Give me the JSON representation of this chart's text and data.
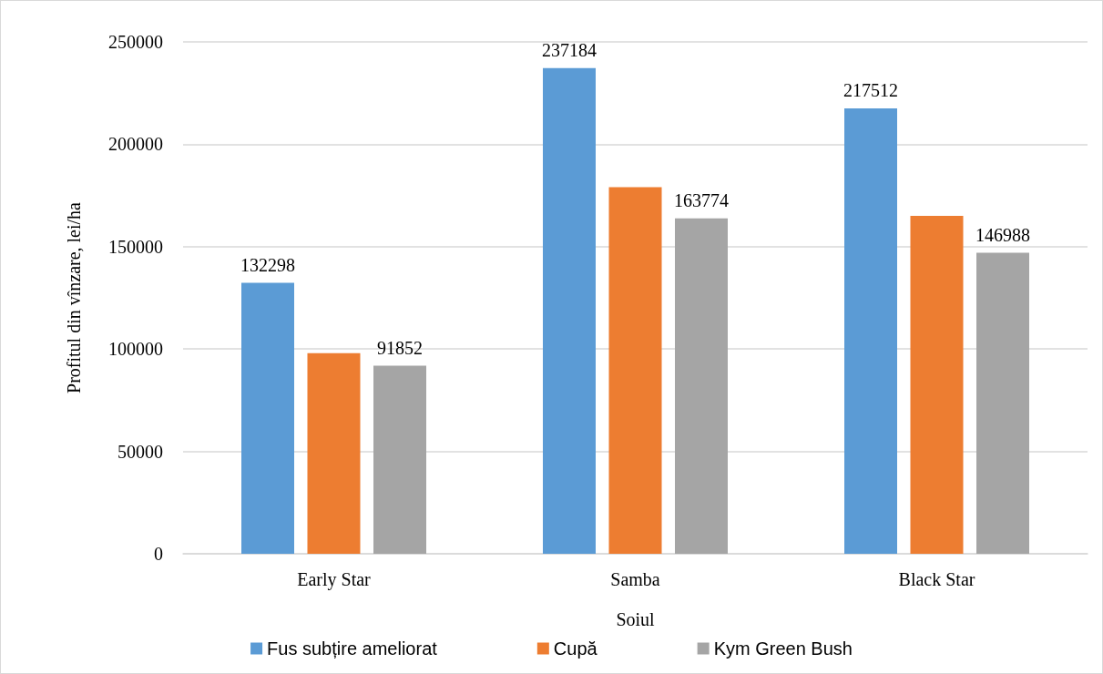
{
  "chart_data": {
    "type": "bar",
    "xlabel": "Soiul",
    "ylabel": "Profitul din vînzare, lei/ha",
    "categories": [
      "Early Star",
      "Samba",
      "Black Star"
    ],
    "series": [
      {
        "name": "Fus subțire ameliorat",
        "color": "#5b9bd5",
        "values": [
          132298,
          237184,
          217512
        ],
        "value_labels": [
          "132298",
          "237184",
          "217512"
        ]
      },
      {
        "name": "Cupă",
        "color": "#ed7d31",
        "values": [
          98000,
          179000,
          165000
        ],
        "value_labels": [
          null,
          null,
          null
        ]
      },
      {
        "name": "Kym Green Bush",
        "color": "#a5a5a5",
        "values": [
          91852,
          163774,
          146988
        ],
        "value_labels": [
          "91852",
          "163774",
          "146988"
        ]
      }
    ],
    "ylim": [
      0,
      250000
    ],
    "yticks": [
      0,
      50000,
      100000,
      150000,
      200000,
      250000
    ],
    "grid": "y",
    "legend": "bottom"
  }
}
